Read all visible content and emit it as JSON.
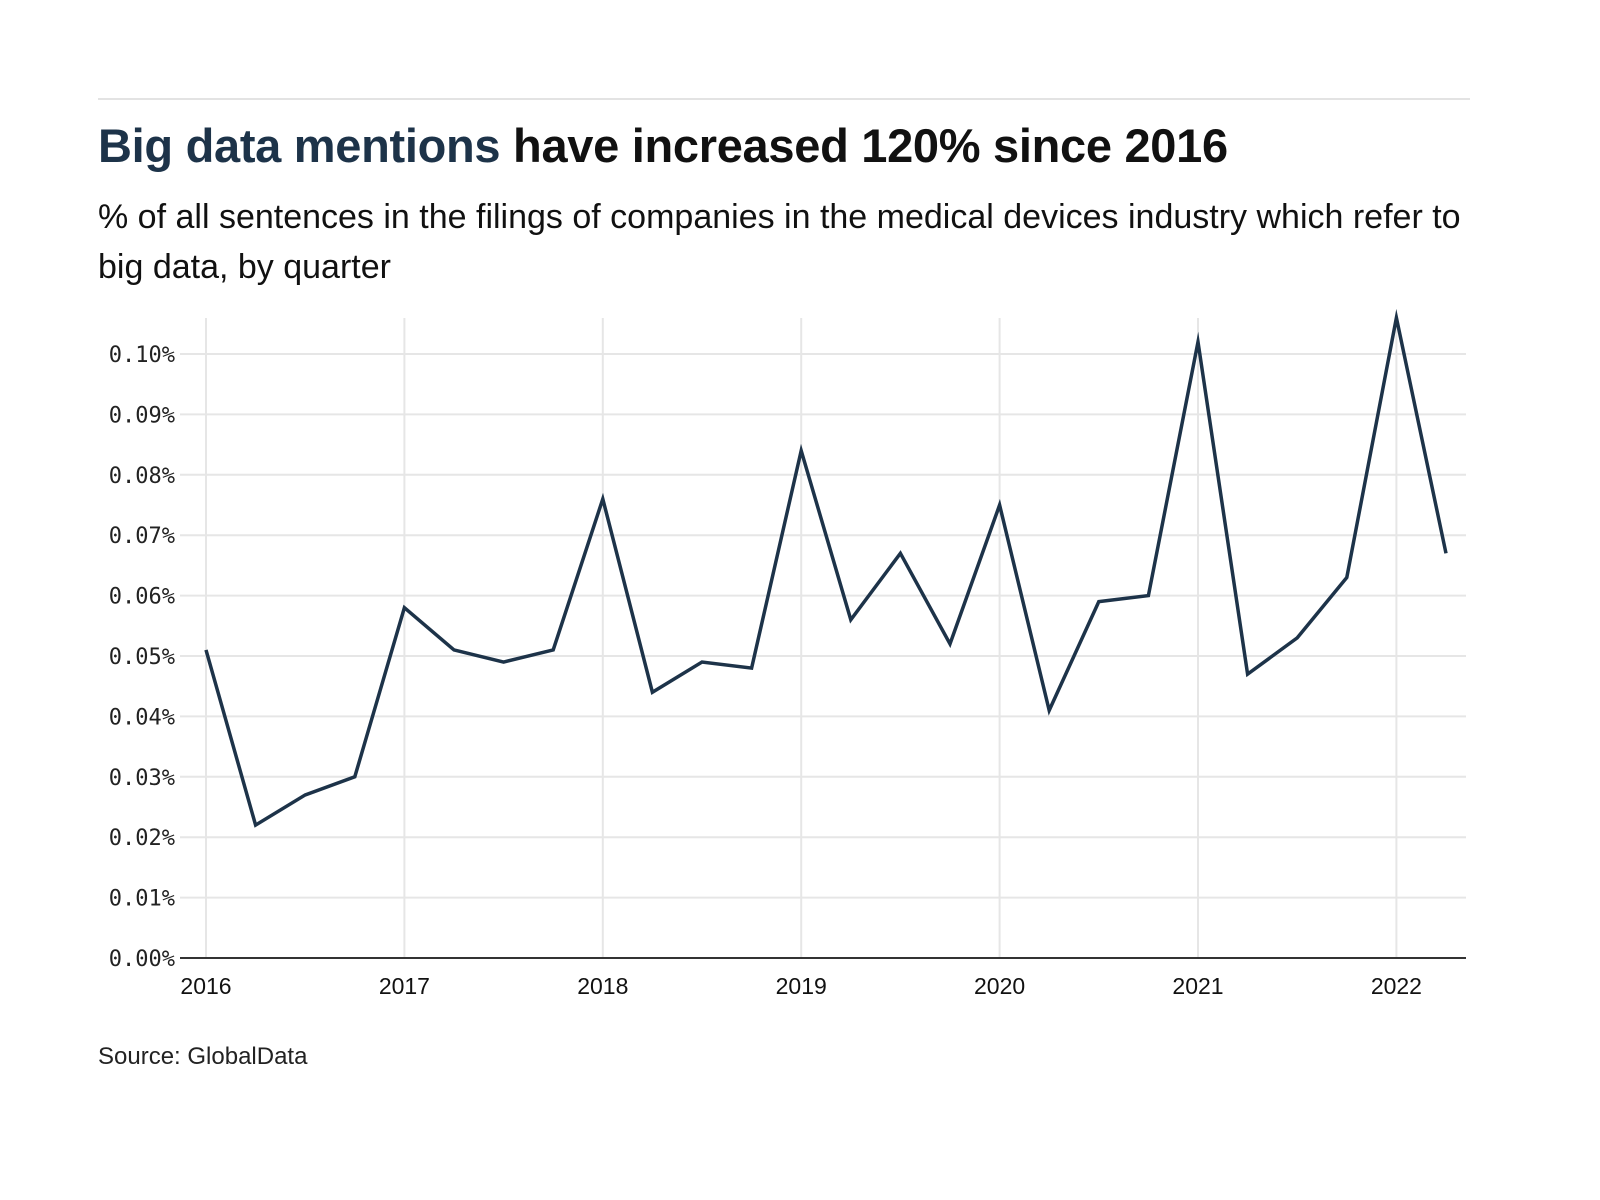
{
  "header": {
    "title_highlight": "Big data mentions",
    "title_rest": " have increased 120% since 2016",
    "subtitle": "% of all sentences in the filings of companies in the medical devices industry which refer to big data, by quarter"
  },
  "footer": {
    "source": "Source: GlobalData"
  },
  "colors": {
    "line": "#1d3349",
    "highlight": "#1d3349",
    "grid": "#e6e6e6",
    "axis": "#333333"
  },
  "chart_data": {
    "type": "line",
    "title": "Big data mentions have increased 120% since 2016",
    "subtitle": "% of all sentences in the filings of companies in the medical devices industry which refer to big data, by quarter",
    "xlabel": "",
    "ylabel": "",
    "ylim": [
      0,
      0.106
    ],
    "grid": true,
    "legend": "none",
    "yticks": [
      0,
      0.01,
      0.02,
      0.03,
      0.04,
      0.05,
      0.06,
      0.07,
      0.08,
      0.09,
      0.1
    ],
    "ytick_labels": [
      "0.00%",
      "0.01%",
      "0.02%",
      "0.03%",
      "0.04%",
      "0.05%",
      "0.06%",
      "0.07%",
      "0.08%",
      "0.09%",
      "0.10%"
    ],
    "xticks": [
      2016,
      2017,
      2018,
      2019,
      2020,
      2021,
      2022
    ],
    "xtick_labels": [
      "2016",
      "2017",
      "2018",
      "2019",
      "2020",
      "2021",
      "2022"
    ],
    "x": [
      "2016 Q1",
      "2016 Q2",
      "2016 Q3",
      "2016 Q4",
      "2017 Q1",
      "2017 Q2",
      "2017 Q3",
      "2017 Q4",
      "2018 Q1",
      "2018 Q2",
      "2018 Q3",
      "2018 Q4",
      "2019 Q1",
      "2019 Q2",
      "2019 Q3",
      "2019 Q4",
      "2020 Q1",
      "2020 Q2",
      "2020 Q3",
      "2020 Q4",
      "2021 Q1",
      "2021 Q2",
      "2021 Q3",
      "2021 Q4",
      "2022 Q1",
      "2022 Q2"
    ],
    "series": [
      {
        "name": "Big data mentions (%)",
        "values": [
          0.051,
          0.022,
          0.027,
          0.03,
          0.058,
          0.051,
          0.049,
          0.051,
          0.076,
          0.044,
          0.049,
          0.048,
          0.084,
          0.056,
          0.067,
          0.052,
          0.075,
          0.041,
          0.059,
          0.06,
          0.102,
          0.047,
          0.053,
          0.063,
          0.106,
          0.067
        ]
      }
    ],
    "unit": "%"
  }
}
